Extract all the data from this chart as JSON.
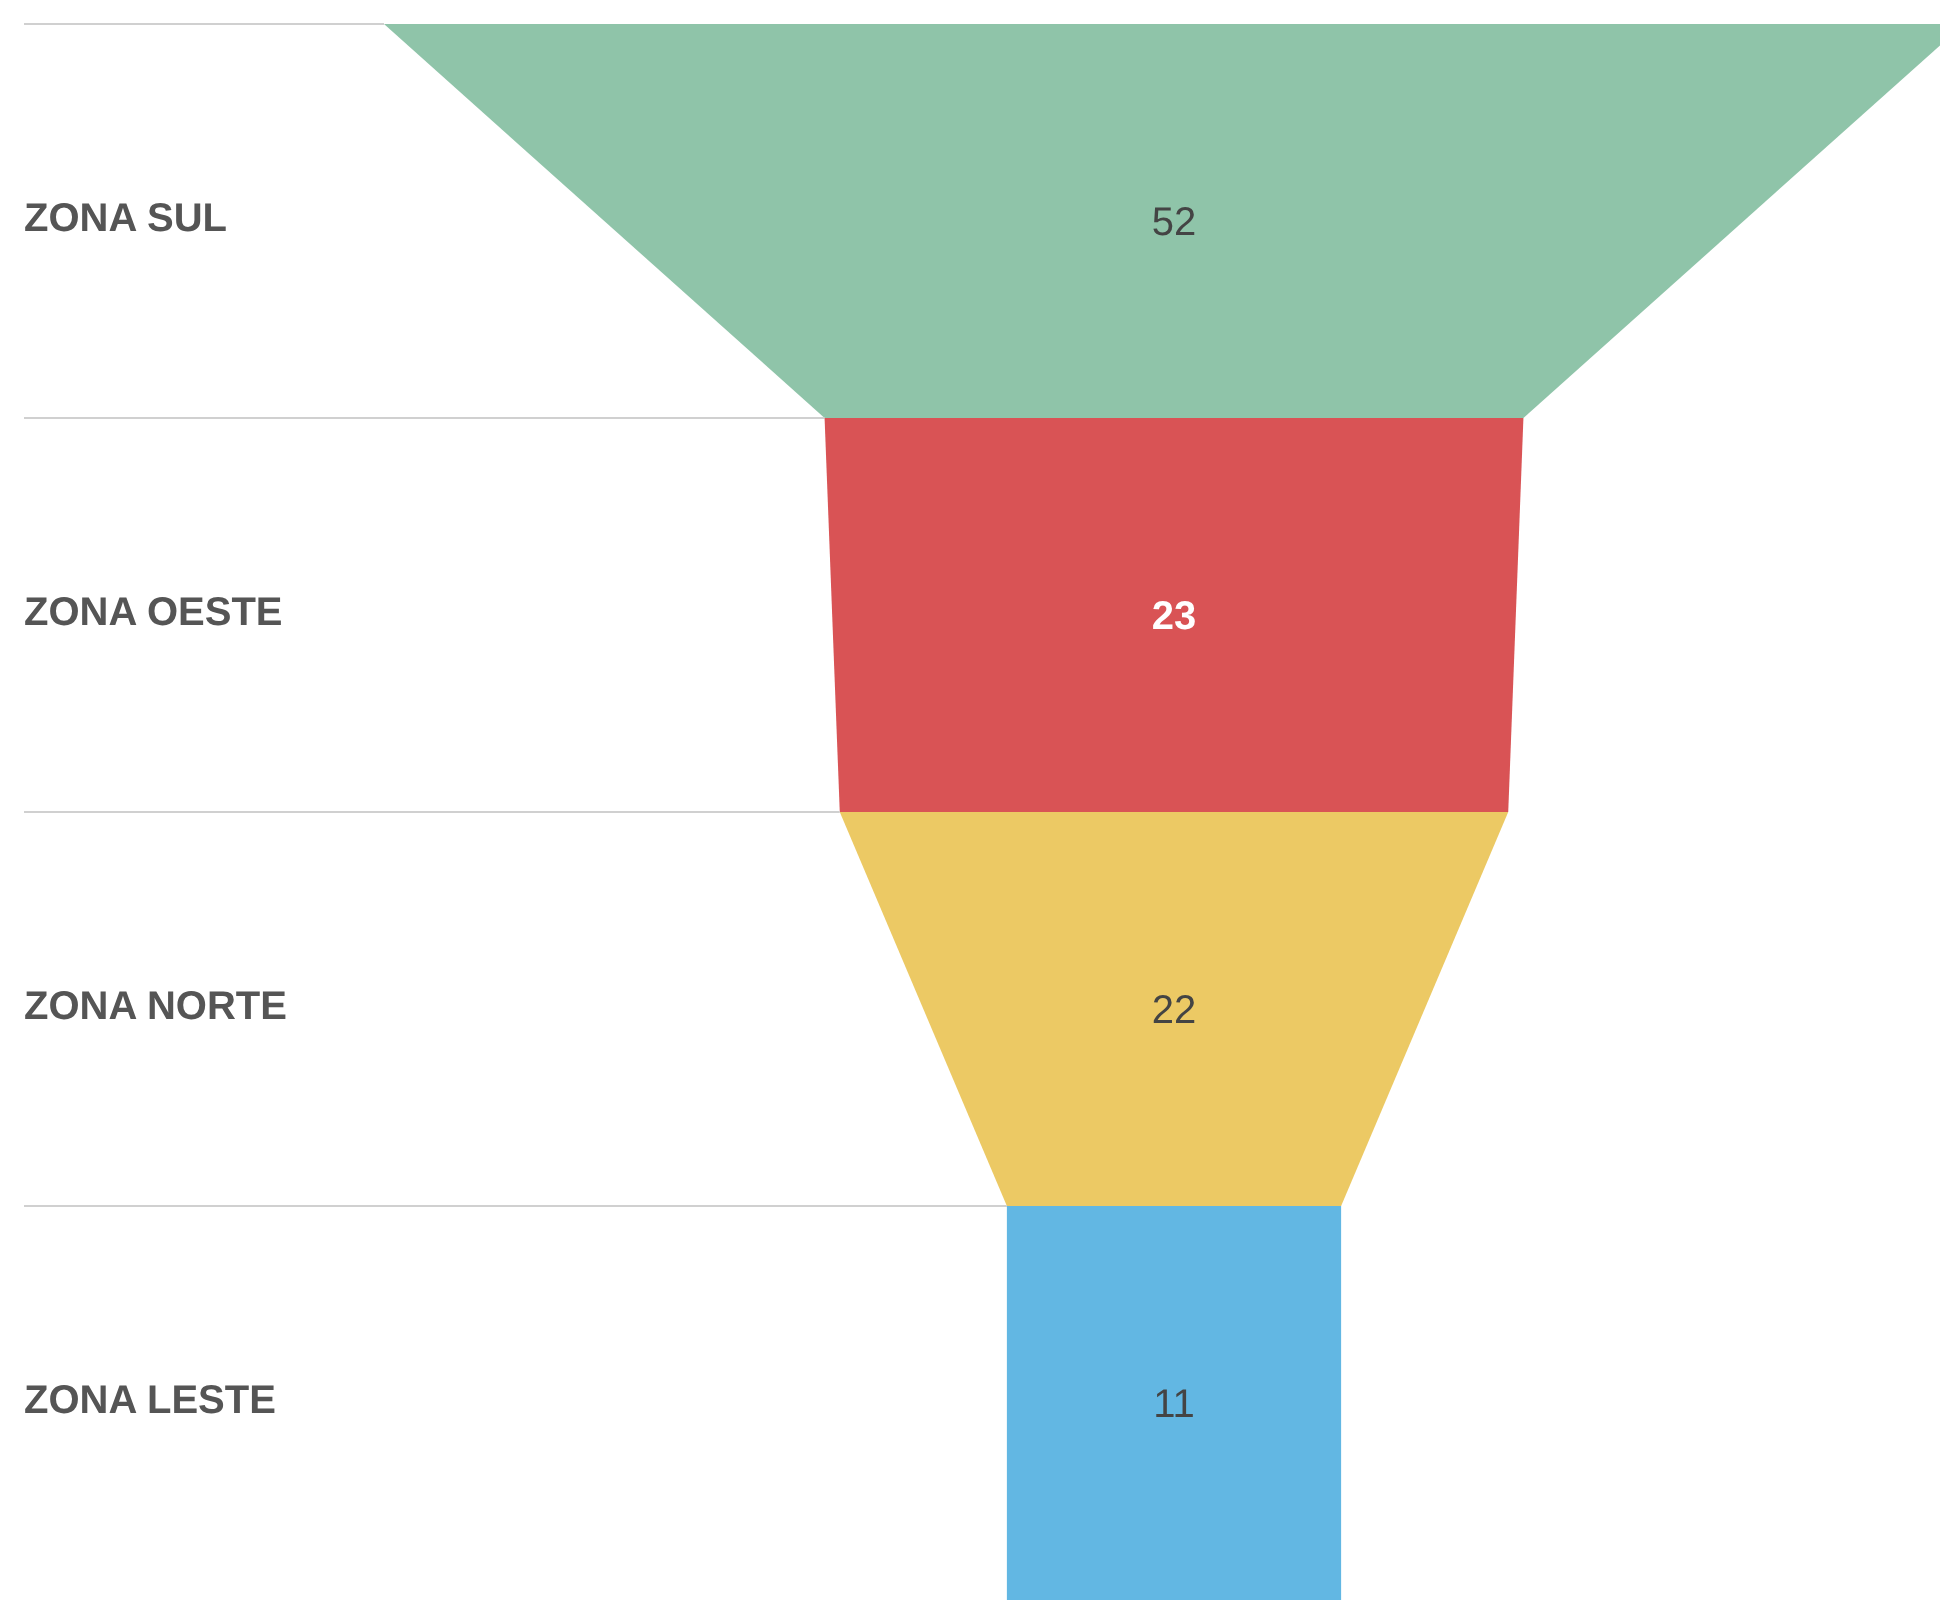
{
  "chart_data": {
    "type": "other",
    "categories": [
      "ZONA SUL",
      "ZONA OESTE",
      "ZONA NORTE",
      "ZONA LESTE"
    ],
    "values": [
      52,
      23,
      22,
      11
    ],
    "colors": [
      "#8fc4a9",
      "#d95355",
      "#ecc964",
      "#62b7e3"
    ],
    "data_labels": true
  }
}
